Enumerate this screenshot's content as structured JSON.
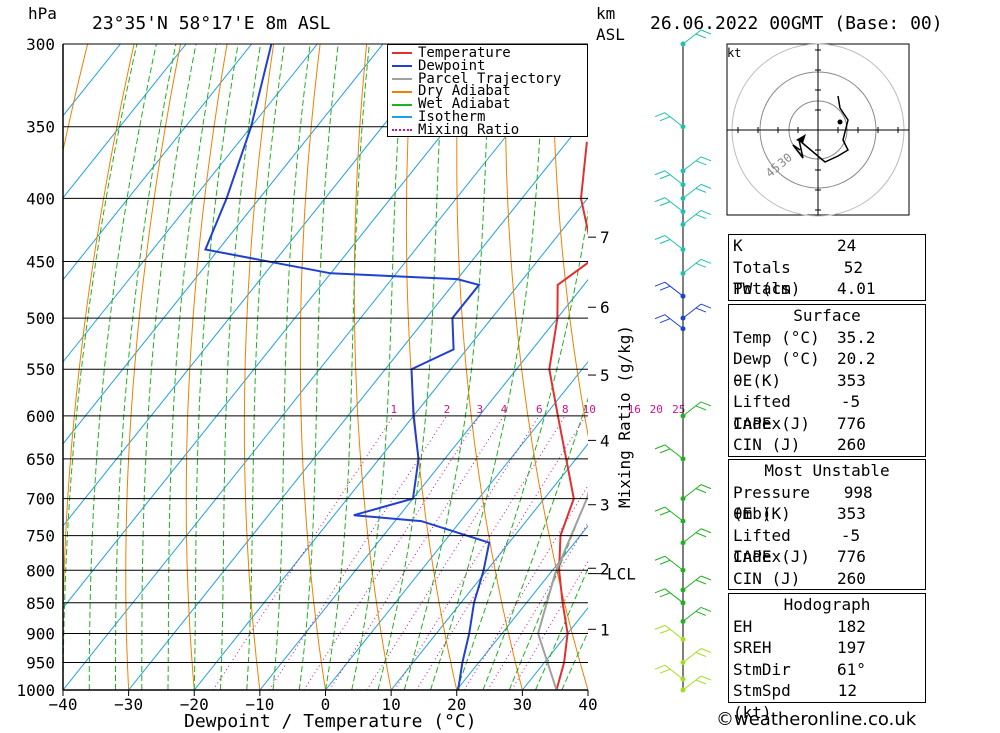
{
  "header": {
    "location": "23°35'N 58°17'E 8m ASL",
    "datetime": "26.06.2022 00GMT (Base: 00)",
    "hpa_label": "hPa",
    "km_label": "km",
    "asl_label": "ASL"
  },
  "legend": [
    {
      "label": "Temperature",
      "color": "#e03030",
      "style": "solid"
    },
    {
      "label": "Dewpoint",
      "color": "#2040d0",
      "style": "solid"
    },
    {
      "label": "Parcel Trajectory",
      "color": "#a0a0a0",
      "style": "solid"
    },
    {
      "label": "Dry Adiabat",
      "color": "#f08000",
      "style": "solid"
    },
    {
      "label": "Wet Adiabat",
      "color": "#20b020",
      "style": "solid"
    },
    {
      "label": "Isotherm",
      "color": "#20a0e0",
      "style": "solid"
    },
    {
      "label": "Mixing Ratio",
      "color": "#d01090",
      "style": "dotted"
    }
  ],
  "chart_data": {
    "type": "line",
    "title": "",
    "xlabel": "Dewpoint / Temperature (°C)",
    "ylabel": "hPa",
    "secondary_axis_label": "Mixing Ratio (g/kg)",
    "xlim": [
      -40,
      40
    ],
    "ylim": [
      1000,
      300
    ],
    "x_ticks": [
      -40,
      -30,
      -20,
      -10,
      0,
      10,
      20,
      30,
      40
    ],
    "pressure_levels": [
      300,
      350,
      400,
      450,
      500,
      550,
      600,
      650,
      700,
      750,
      800,
      850,
      900,
      950,
      1000
    ],
    "km_ticks": [
      {
        "km": "1",
        "p": 893
      },
      {
        "km": "2",
        "p": 797
      },
      {
        "km": "3",
        "p": 708
      },
      {
        "km": "4",
        "p": 628
      },
      {
        "km": "5",
        "p": 556
      },
      {
        "km": "6",
        "p": 490
      },
      {
        "km": "7",
        "p": 430
      }
    ],
    "lcl": {
      "label": "LCL",
      "p": 805
    },
    "mixing_ratio_labels": [
      "1",
      "2",
      "3",
      "4",
      "6",
      "8",
      "10",
      "16",
      "20",
      "25"
    ],
    "series": [
      {
        "name": "Temperature",
        "color": "#e03030",
        "points": [
          [
            1000,
            35.2
          ],
          [
            950,
            33
          ],
          [
            900,
            30
          ],
          [
            850,
            25.5
          ],
          [
            800,
            21
          ],
          [
            750,
            17
          ],
          [
            700,
            14.5
          ],
          [
            650,
            8.5
          ],
          [
            600,
            2
          ],
          [
            550,
            -5
          ],
          [
            500,
            -10
          ],
          [
            470,
            -14
          ],
          [
            450,
            -12
          ],
          [
            430,
            -15
          ],
          [
            400,
            -21
          ],
          [
            360,
            -27
          ]
        ]
      },
      {
        "name": "Dewpoint",
        "color": "#2040d0",
        "points": [
          [
            1000,
            20.2
          ],
          [
            950,
            17.5
          ],
          [
            900,
            15
          ],
          [
            850,
            12
          ],
          [
            800,
            9.5
          ],
          [
            760,
            7
          ],
          [
            730,
            -6
          ],
          [
            722,
            -17
          ],
          [
            700,
            -10
          ],
          [
            650,
            -14
          ],
          [
            600,
            -20
          ],
          [
            550,
            -26
          ],
          [
            530,
            -22
          ],
          [
            500,
            -26
          ],
          [
            470,
            -26
          ],
          [
            465,
            -30
          ],
          [
            460,
            -50
          ],
          [
            440,
            -72
          ],
          [
            400,
            -75
          ],
          [
            350,
            -80
          ],
          [
            300,
            -87
          ]
        ]
      },
      {
        "name": "Parcel Trajectory",
        "color": "#a0a0a0",
        "points": [
          [
            1000,
            35.2
          ],
          [
            900,
            25.5
          ],
          [
            805,
            20.8
          ],
          [
            700,
            16.5
          ],
          [
            600,
            10
          ],
          [
            500,
            0
          ],
          [
            450,
            -7
          ],
          [
            400,
            -13
          ],
          [
            360,
            -20
          ]
        ]
      }
    ]
  },
  "hodograph": {
    "unit": "kt",
    "rings": [
      "15",
      "30",
      "45"
    ]
  },
  "indices": [
    {
      "label": "K",
      "value": "24"
    },
    {
      "label": "Totals Totals",
      "value": "52"
    },
    {
      "label": "PW (cm)",
      "value": "4.01"
    }
  ],
  "surface": {
    "title": "Surface",
    "rows": [
      {
        "label": "Temp (°C)",
        "value": "35.2"
      },
      {
        "label": "Dewp (°C)",
        "value": "20.2"
      },
      {
        "label": "θE(K)",
        "value": "353"
      },
      {
        "label": "Lifted Index",
        "value": "-5"
      },
      {
        "label": "CAPE (J)",
        "value": "776"
      },
      {
        "label": "CIN (J)",
        "value": "260"
      }
    ]
  },
  "most_unstable": {
    "title": "Most Unstable",
    "rows": [
      {
        "label": "Pressure (mb)",
        "value": "998"
      },
      {
        "label": "θE (K)",
        "value": "353"
      },
      {
        "label": "Lifted Index",
        "value": "-5"
      },
      {
        "label": "CAPE (J)",
        "value": "776"
      },
      {
        "label": "CIN (J)",
        "value": "260"
      }
    ]
  },
  "hodograph_table": {
    "title": "Hodograph",
    "rows": [
      {
        "label": "EH",
        "value": "182"
      },
      {
        "label": "SREH",
        "value": "197"
      },
      {
        "label": "StmDir",
        "value": "61°"
      },
      {
        "label": "StmSpd (kt)",
        "value": "12"
      }
    ]
  },
  "credit": "©weatheronline.co.uk"
}
